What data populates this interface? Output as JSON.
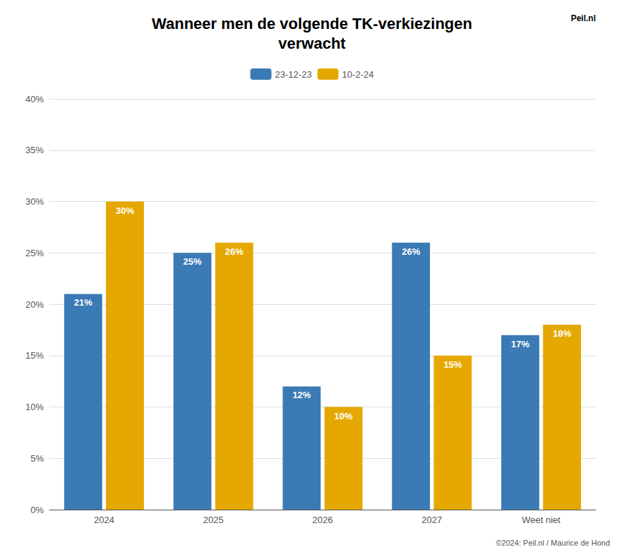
{
  "chart_data": {
    "type": "bar",
    "title": "Wanneer men de volgende TK-verkiezingen\nverwacht",
    "categories": [
      "2024",
      "2025",
      "2026",
      "2027",
      "Weet niet"
    ],
    "series": [
      {
        "name": "23-12-23",
        "color": "#3a7ab5",
        "values": [
          21,
          25,
          12,
          26,
          17
        ],
        "value_labels": [
          "21%",
          "25%",
          "12%",
          "26%",
          "17%"
        ]
      },
      {
        "name": "10-2-24",
        "color": "#e5a800",
        "values": [
          30,
          26,
          10,
          15,
          18
        ],
        "value_labels": [
          "30%",
          "26%",
          "10%",
          "15%",
          "18%"
        ]
      }
    ],
    "ylim": [
      0,
      40
    ],
    "yticks": [
      {
        "value": 0,
        "label": "0%"
      },
      {
        "value": 5,
        "label": "5%"
      },
      {
        "value": 10,
        "label": "10%"
      },
      {
        "value": 15,
        "label": "15%"
      },
      {
        "value": 20,
        "label": "20%"
      },
      {
        "value": 25,
        "label": "25%"
      },
      {
        "value": 30,
        "label": "30%"
      },
      {
        "value": 35,
        "label": "35%"
      },
      {
        "value": 40,
        "label": "40%"
      }
    ],
    "grid": true,
    "legend": "top",
    "data_labels": true,
    "annotations": [
      "©2024: Peil.nl / Maurice de Hond",
      "Peil.nl"
    ]
  }
}
